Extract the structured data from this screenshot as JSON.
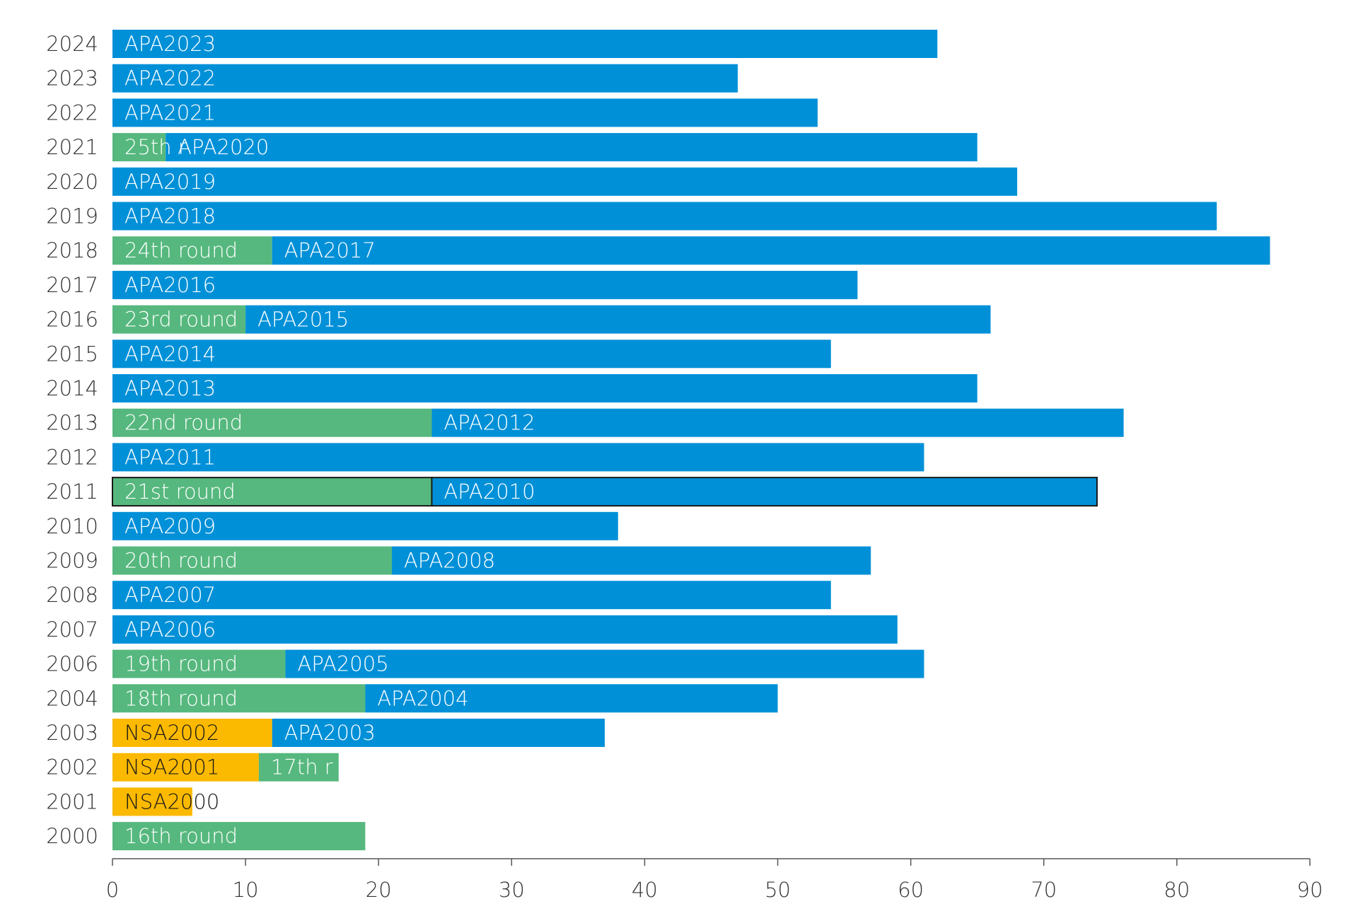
{
  "chart_data": {
    "type": "stacked-barh",
    "categories": [
      "2024",
      "2023",
      "2022",
      "2021",
      "2020",
      "2019",
      "2018",
      "2017",
      "2016",
      "2015",
      "2014",
      "2013",
      "2012",
      "2011",
      "2010",
      "2009",
      "2008",
      "2007",
      "2006",
      "2004",
      "2003",
      "2002",
      "2001",
      "2000"
    ],
    "bars": [
      [
        {
          "label": "APA2023",
          "value": 62,
          "color": "#0090d8"
        }
      ],
      [
        {
          "label": "APA2022",
          "value": 47,
          "color": "#0090d8"
        }
      ],
      [
        {
          "label": "APA2021",
          "value": 53,
          "color": "#0090d8"
        }
      ],
      [
        {
          "label": "25th r",
          "value": 4,
          "color": "#56b87e"
        },
        {
          "label": "APA2020",
          "value": 61,
          "color": "#0090d8"
        }
      ],
      [
        {
          "label": "APA2019",
          "value": 68,
          "color": "#0090d8"
        }
      ],
      [
        {
          "label": "APA2018",
          "value": 83,
          "color": "#0090d8"
        }
      ],
      [
        {
          "label": "24th round",
          "value": 12,
          "color": "#56b87e"
        },
        {
          "label": "APA2017",
          "value": 75,
          "color": "#0090d8"
        }
      ],
      [
        {
          "label": "APA2016",
          "value": 56,
          "color": "#0090d8"
        }
      ],
      [
        {
          "label": "23rd round",
          "value": 10,
          "color": "#56b87e"
        },
        {
          "label": "APA2015",
          "value": 56,
          "color": "#0090d8"
        }
      ],
      [
        {
          "label": "APA2014",
          "value": 54,
          "color": "#0090d8"
        }
      ],
      [
        {
          "label": "APA2013",
          "value": 65,
          "color": "#0090d8"
        }
      ],
      [
        {
          "label": "22nd round",
          "value": 24,
          "color": "#56b87e"
        },
        {
          "label": "APA2012",
          "value": 52,
          "color": "#0090d8"
        }
      ],
      [
        {
          "label": "APA2011",
          "value": 61,
          "color": "#0090d8"
        }
      ],
      [
        {
          "label": "21st round",
          "value": 24,
          "color": "#56b87e"
        },
        {
          "label": "APA2010",
          "value": 50,
          "color": "#0090d8"
        }
      ],
      [
        {
          "label": "APA2009",
          "value": 38,
          "color": "#0090d8"
        }
      ],
      [
        {
          "label": "20th round",
          "value": 21,
          "color": "#56b87e"
        },
        {
          "label": "APA2008",
          "value": 36,
          "color": "#0090d8"
        }
      ],
      [
        {
          "label": "APA2007",
          "value": 54,
          "color": "#0090d8"
        }
      ],
      [
        {
          "label": "APA2006",
          "value": 59,
          "color": "#0090d8"
        }
      ],
      [
        {
          "label": "19th round",
          "value": 13,
          "color": "#56b87e"
        },
        {
          "label": "APA2005",
          "value": 48,
          "color": "#0090d8"
        }
      ],
      [
        {
          "label": "18th round",
          "value": 19,
          "color": "#56b87e"
        },
        {
          "label": "APA2004",
          "value": 31,
          "color": "#0090d8"
        }
      ],
      [
        {
          "label": "NSA2002",
          "value": 12,
          "color": "#fbb900"
        },
        {
          "label": "APA2003",
          "value": 25,
          "color": "#0090d8"
        }
      ],
      [
        {
          "label": "NSA2001",
          "value": 11,
          "color": "#fbb900"
        },
        {
          "label": "17th r",
          "value": 6,
          "color": "#56b87e"
        }
      ],
      [
        {
          "label": "NSA2000",
          "value": 6,
          "color": "#fbb900"
        }
      ],
      [
        {
          "label": "16th round",
          "value": 19,
          "color": "#56b87e"
        }
      ]
    ],
    "highlight": "2011",
    "xlim": [
      0,
      90
    ],
    "xticks": [
      0,
      10,
      20,
      30,
      40,
      50,
      60,
      70,
      80,
      90
    ]
  }
}
